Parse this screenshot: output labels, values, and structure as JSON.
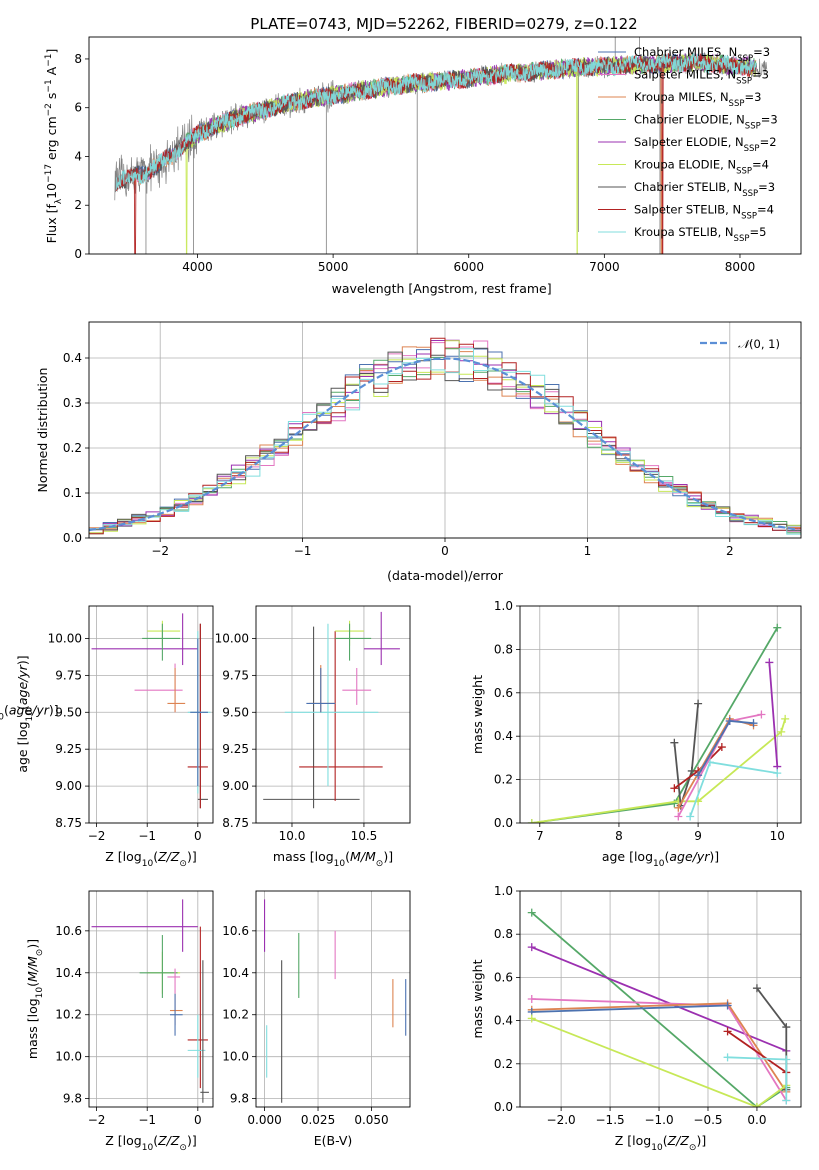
{
  "figure": {
    "title": "PLATE=0743, MJD=52262, FIBERID=0279, z=0.122"
  },
  "colors": {
    "Chabrier MILES": "#4c72b0",
    "Salpeter MILES": "#e377c2",
    "Kroupa MILES": "#dd8452",
    "Chabrier ELODIE": "#55a868",
    "Salpeter ELODIE": "#9b30b0",
    "Kroupa ELODIE": "#c7e857",
    "Chabrier STELIB": "#555555",
    "Salpeter STELIB": "#b22222",
    "Kroupa STELIB": "#80dede",
    "data": "#808080",
    "normal": "#5b8fd6"
  },
  "chart_data": [
    {
      "id": "spectrum",
      "type": "line",
      "title": "PLATE=0743, MJD=52262, FIBERID=0279, z=0.122",
      "xlabel": "wavelength [Angstrom, rest frame]",
      "ylabel": "Flux [f_λ 10^-17 erg cm^-2 s^-1 A^-1]",
      "xlim": [
        3200,
        8450
      ],
      "ylim": [
        0,
        8.9
      ],
      "xticks": [
        4000,
        5000,
        6000,
        7000,
        8000
      ],
      "yticks": [
        0,
        2,
        4,
        6,
        8
      ],
      "grid": false,
      "legend_position": "top-right",
      "legend": [
        {
          "name": "Chabrier MILES, N",
          "sub": "SSP",
          "tail": "=3"
        },
        {
          "name": "Salpeter MILES, N",
          "sub": "SSP",
          "tail": "=3"
        },
        {
          "name": "Kroupa MILES, N",
          "sub": "SSP",
          "tail": "=3"
        },
        {
          "name": "Chabrier ELODIE, N",
          "sub": "SSP",
          "tail": "=3"
        },
        {
          "name": "Salpeter ELODIE, N",
          "sub": "SSP",
          "tail": "=2"
        },
        {
          "name": "Kroupa ELODIE, N",
          "sub": "SSP",
          "tail": "=4"
        },
        {
          "name": "Chabrier STELIB, N",
          "sub": "SSP",
          "tail": "=3"
        },
        {
          "name": "Salpeter STELIB, N",
          "sub": "SSP",
          "tail": "=4"
        },
        {
          "name": "Kroupa STELIB, N",
          "sub": "SSP",
          "tail": "=5"
        }
      ],
      "continuum": {
        "x": [
          3400,
          3500,
          3600,
          3700,
          3800,
          3900,
          4000,
          4100,
          4200,
          4300,
          4400,
          4500,
          4600,
          4700,
          4800,
          4900,
          5000,
          5200,
          5400,
          5600,
          5800,
          6000,
          6200,
          6400,
          6600,
          6800,
          7000,
          7200,
          7400,
          7600,
          7800,
          8000,
          8200
        ],
        "y": [
          3.0,
          3.1,
          3.3,
          3.6,
          4.0,
          4.5,
          4.9,
          5.2,
          5.4,
          5.6,
          5.8,
          5.9,
          6.1,
          6.2,
          6.35,
          6.4,
          6.5,
          6.7,
          6.85,
          7.0,
          7.1,
          7.2,
          7.35,
          7.45,
          7.55,
          7.65,
          7.7,
          7.75,
          7.8,
          7.85,
          7.8,
          7.7,
          7.6
        ]
      },
      "drops": [
        {
          "model": "Kroupa MILES",
          "x": 3510
        },
        {
          "model": "Salpeter STELIB",
          "x": 3540
        },
        {
          "model": "Kroupa ELODIE",
          "x": 3920
        },
        {
          "model": "Kroupa ELODIE",
          "x": 6800
        },
        {
          "model": "Kroupa MILES",
          "x": 7420
        },
        {
          "model": "Salpeter STELIB",
          "x": 7430
        }
      ]
    },
    {
      "id": "residuals",
      "type": "line",
      "xlabel": "(data-model)/error",
      "ylabel": "Normed distribution",
      "xlim": [
        -2.5,
        2.5
      ],
      "ylim": [
        0,
        0.48
      ],
      "xticks": [
        -2,
        -1,
        0,
        1,
        2
      ],
      "yticks": [
        0.0,
        0.1,
        0.2,
        0.3,
        0.4
      ],
      "grid": true,
      "legend_position": "top-right",
      "legend": [
        {
          "name": "N(0,1)"
        }
      ],
      "bin_width": 0.1
    },
    {
      "id": "age-vs-Z",
      "type": "scatter",
      "xlabel": "Z [log10(Z/Z☉)]",
      "ylabel": "age [log10(age/yr)]",
      "xlim": [
        -2.15,
        0.3
      ],
      "ylim": [
        8.75,
        10.22
      ],
      "xticks": [
        -2,
        -1,
        0
      ],
      "yticks": [
        8.75,
        9.0,
        9.25,
        9.5,
        9.75,
        10.0
      ],
      "grid": true,
      "points": [
        {
          "model": "Salpeter ELODIE",
          "x": -0.3,
          "y": 9.93,
          "xlo": -2.1,
          "xhi": 0.0,
          "ylo": 9.82,
          "yhi": 10.17
        },
        {
          "model": "Kroupa ELODIE",
          "x": -0.7,
          "y": 10.05,
          "xlo": -1.0,
          "xhi": -0.35,
          "ylo": 9.95,
          "yhi": 10.12
        },
        {
          "model": "Chabrier ELODIE",
          "x": -0.7,
          "y": 10.0,
          "xlo": -1.1,
          "xhi": -0.35,
          "ylo": 9.85,
          "yhi": 10.1
        },
        {
          "model": "Salpeter MILES",
          "x": -0.45,
          "y": 9.65,
          "xlo": -1.25,
          "xhi": -0.3,
          "ylo": 9.5,
          "yhi": 9.83
        },
        {
          "model": "Kroupa MILES",
          "x": -0.45,
          "y": 9.56,
          "xlo": -0.6,
          "xhi": -0.25,
          "ylo": 9.5,
          "yhi": 9.8
        },
        {
          "model": "Chabrier STELIB",
          "x": 0.05,
          "y": 8.91,
          "xlo": 0.0,
          "xhi": 0.2,
          "ylo": 8.85,
          "yhi": 10.1
        },
        {
          "model": "Salpeter STELIB",
          "x": 0.05,
          "y": 9.13,
          "xlo": -0.2,
          "xhi": 0.2,
          "ylo": 8.85,
          "yhi": 10.1
        },
        {
          "model": "Kroupa STELIB",
          "x": 0.0,
          "y": 9.5,
          "xlo": -0.2,
          "xhi": 0.25,
          "ylo": 8.95,
          "yhi": 10.05
        },
        {
          "model": "Chabrier MILES",
          "x": 0.0,
          "y": 9.5,
          "xlo": -0.15,
          "xhi": 0.2,
          "ylo": 9.0,
          "yhi": 10.0
        }
      ]
    },
    {
      "id": "age-vs-mass",
      "type": "scatter",
      "xlabel": "mass [log10(M/M☉)]",
      "ylabel": "",
      "xlim": [
        9.75,
        10.82
      ],
      "ylim": [
        8.75,
        10.22
      ],
      "xticks": [
        10.0,
        10.5
      ],
      "yticks": [
        8.75,
        9.0,
        9.25,
        9.5,
        9.75,
        10.0
      ],
      "grid": true,
      "points": [
        {
          "model": "Chabrier STELIB",
          "x": 10.15,
          "y": 8.91,
          "xlo": 9.8,
          "xhi": 10.47,
          "ylo": 8.85,
          "yhi": 10.08
        },
        {
          "model": "Salpeter STELIB",
          "x": 10.3,
          "y": 9.13,
          "xlo": 10.05,
          "xhi": 10.63,
          "ylo": 8.9,
          "yhi": 10.05
        },
        {
          "model": "Kroupa STELIB",
          "x": 10.25,
          "y": 9.5,
          "xlo": 9.95,
          "xhi": 10.6,
          "ylo": 9.0,
          "yhi": 10.1
        },
        {
          "model": "Kroupa MILES",
          "x": 10.2,
          "y": 9.56,
          "xlo": 10.12,
          "xhi": 10.3,
          "ylo": 9.5,
          "yhi": 9.82
        },
        {
          "model": "Chabrier MILES",
          "x": 10.2,
          "y": 9.56,
          "xlo": 10.1,
          "xhi": 10.3,
          "ylo": 9.5,
          "yhi": 9.8
        },
        {
          "model": "Salpeter MILES",
          "x": 10.45,
          "y": 9.65,
          "xlo": 10.35,
          "xhi": 10.55,
          "ylo": 9.55,
          "yhi": 9.8
        },
        {
          "model": "Kroupa ELODIE",
          "x": 10.4,
          "y": 10.05,
          "xlo": 10.3,
          "xhi": 10.5,
          "ylo": 9.95,
          "yhi": 10.12
        },
        {
          "model": "Chabrier ELODIE",
          "x": 10.4,
          "y": 10.0,
          "xlo": 10.3,
          "xhi": 10.55,
          "ylo": 9.85,
          "yhi": 10.1
        },
        {
          "model": "Salpeter ELODIE",
          "x": 10.62,
          "y": 9.93,
          "xlo": 10.5,
          "xhi": 10.75,
          "ylo": 9.82,
          "yhi": 10.18
        }
      ]
    },
    {
      "id": "massweight-vs-age",
      "type": "line",
      "xlabel": "age [log10(age/yr)]",
      "ylabel": "mass weight",
      "xlim": [
        6.75,
        10.3
      ],
      "ylim": [
        0,
        1.0
      ],
      "xticks": [
        7,
        8,
        9,
        10
      ],
      "yticks": [
        0.0,
        0.2,
        0.4,
        0.6,
        0.8,
        1.0
      ],
      "grid": true,
      "series": [
        {
          "model": "Chabrier ELODIE",
          "x": [
            6.9,
            8.7,
            10.0
          ],
          "y": [
            0.0,
            0.09,
            0.9
          ]
        },
        {
          "model": "Kroupa ELODIE",
          "x": [
            6.9,
            8.75,
            9.0,
            10.05,
            10.1
          ],
          "y": [
            0.0,
            0.1,
            0.1,
            0.42,
            0.48
          ]
        },
        {
          "model": "Salpeter ELODIE",
          "x": [
            9.9,
            10.0
          ],
          "y": [
            0.74,
            0.26
          ]
        },
        {
          "model": "Chabrier STELIB",
          "x": [
            8.7,
            8.78,
            8.92,
            9.0
          ],
          "y": [
            0.37,
            0.08,
            0.24,
            0.55
          ]
        },
        {
          "model": "Salpeter STELIB",
          "x": [
            8.7,
            9.0,
            9.3
          ],
          "y": [
            0.16,
            0.24,
            0.35
          ]
        },
        {
          "model": "Kroupa STELIB",
          "x": [
            8.9,
            9.15,
            10.0
          ],
          "y": [
            0.03,
            0.28,
            0.23
          ]
        },
        {
          "model": "Kroupa MILES",
          "x": [
            8.75,
            9.4,
            9.7
          ],
          "y": [
            0.07,
            0.48,
            0.45
          ]
        },
        {
          "model": "Salpeter MILES",
          "x": [
            8.75,
            9.4,
            9.8
          ],
          "y": [
            0.03,
            0.47,
            0.5
          ]
        },
        {
          "model": "Chabrier MILES",
          "x": [
            9.0,
            9.4,
            9.7
          ],
          "y": [
            0.22,
            0.47,
            0.46
          ]
        }
      ]
    },
    {
      "id": "mass-vs-Z",
      "type": "scatter",
      "xlabel": "Z [log10(Z/Z☉)]",
      "ylabel": "mass [log10(M/M☉)]",
      "xlim": [
        -2.15,
        0.3
      ],
      "ylim": [
        9.76,
        10.79
      ],
      "xticks": [
        -2,
        -1,
        0
      ],
      "yticks": [
        9.8,
        10.0,
        10.2,
        10.4,
        10.6
      ],
      "grid": true,
      "points": [
        {
          "model": "Salpeter ELODIE",
          "x": -0.3,
          "y": 10.62,
          "xlo": -2.1,
          "xhi": 0.0,
          "ylo": 10.5,
          "yhi": 10.75
        },
        {
          "model": "Kroupa ELODIE",
          "x": -0.7,
          "y": 10.4,
          "xlo": -1.0,
          "xhi": -0.35,
          "ylo": 10.3,
          "yhi": 10.5
        },
        {
          "model": "Chabrier ELODIE",
          "x": -0.7,
          "y": 10.4,
          "xlo": -1.15,
          "xhi": -0.4,
          "ylo": 10.28,
          "yhi": 10.58
        },
        {
          "model": "Salpeter MILES",
          "x": -0.45,
          "y": 10.38,
          "xlo": -0.6,
          "xhi": -0.35,
          "ylo": 10.3,
          "yhi": 10.42
        },
        {
          "model": "Kroupa MILES",
          "x": -0.45,
          "y": 10.22,
          "xlo": -0.55,
          "xhi": -0.3,
          "ylo": 10.15,
          "yhi": 10.3
        },
        {
          "model": "Chabrier MILES",
          "x": -0.45,
          "y": 10.2,
          "xlo": -0.55,
          "xhi": -0.3,
          "ylo": 10.1,
          "yhi": 10.3
        },
        {
          "model": "Salpeter STELIB",
          "x": 0.05,
          "y": 10.08,
          "xlo": -0.2,
          "xhi": 0.2,
          "ylo": 9.85,
          "yhi": 10.62
        },
        {
          "model": "Kroupa STELIB",
          "x": 0.0,
          "y": 10.03,
          "xlo": -0.2,
          "xhi": 0.15,
          "ylo": 9.9,
          "yhi": 10.2
        },
        {
          "model": "Chabrier STELIB",
          "x": 0.1,
          "y": 9.83,
          "xlo": 0.05,
          "xhi": 0.22,
          "ylo": 9.78,
          "yhi": 10.46
        }
      ]
    },
    {
      "id": "mass-vs-ebv",
      "type": "scatter",
      "xlabel": "E(B-V)",
      "ylabel": "",
      "xlim": [
        -0.004,
        0.068
      ],
      "ylim": [
        9.76,
        10.79
      ],
      "xticks": [
        0.0,
        0.025,
        0.05
      ],
      "yticks": [
        9.8,
        10.0,
        10.2,
        10.4,
        10.6
      ],
      "grid": true,
      "points": [
        {
          "model": "Salpeter ELODIE",
          "x": 0.0,
          "ylo": 10.5,
          "yhi": 10.75
        },
        {
          "model": "Kroupa STELIB",
          "x": 0.001,
          "ylo": 9.9,
          "yhi": 10.15
        },
        {
          "model": "Chabrier STELIB",
          "x": 0.008,
          "ylo": 9.78,
          "yhi": 10.46
        },
        {
          "model": "Chabrier ELODIE",
          "x": 0.016,
          "ylo": 10.28,
          "yhi": 10.59
        },
        {
          "model": "Salpeter MILES",
          "x": 0.033,
          "ylo": 10.37,
          "yhi": 10.6
        },
        {
          "model": "Kroupa MILES",
          "x": 0.06,
          "ylo": 10.14,
          "yhi": 10.37
        },
        {
          "model": "Chabrier MILES",
          "x": 0.066,
          "ylo": 10.1,
          "yhi": 10.37
        }
      ]
    },
    {
      "id": "massweight-vs-Z",
      "type": "line",
      "xlabel": "Z [log10(Z/Z☉)]",
      "ylabel": "mass weight",
      "xlim": [
        -2.42,
        0.45
      ],
      "ylim": [
        0,
        1.0
      ],
      "xticks": [
        -2.0,
        -1.5,
        -1.0,
        -0.5,
        0.0
      ],
      "yticks": [
        0.0,
        0.2,
        0.4,
        0.6,
        0.8,
        1.0
      ],
      "grid": true,
      "series": [
        {
          "model": "Chabrier ELODIE",
          "x": [
            -2.3,
            0.0,
            0.3
          ],
          "y": [
            0.9,
            0.0,
            0.09
          ]
        },
        {
          "model": "Salpeter ELODIE",
          "x": [
            -2.3,
            0.3
          ],
          "y": [
            0.74,
            0.26
          ]
        },
        {
          "model": "Salpeter MILES",
          "x": [
            -2.3,
            -0.3,
            0.3
          ],
          "y": [
            0.5,
            0.47,
            0.03
          ]
        },
        {
          "model": "Kroupa MILES",
          "x": [
            -2.3,
            -0.3,
            0.3
          ],
          "y": [
            0.45,
            0.48,
            0.07
          ]
        },
        {
          "model": "Chabrier MILES",
          "x": [
            -2.3,
            -0.3
          ],
          "y": [
            0.44,
            0.47
          ]
        },
        {
          "model": "Kroupa ELODIE",
          "x": [
            -2.3,
            0.0,
            0.3
          ],
          "y": [
            0.41,
            0.0,
            0.1
          ]
        },
        {
          "model": "Chabrier STELIB",
          "x": [
            0.0,
            0.3,
            0.3
          ],
          "y": [
            0.55,
            0.37,
            0.08
          ]
        },
        {
          "model": "Salpeter STELIB",
          "x": [
            -0.3,
            0.3
          ],
          "y": [
            0.35,
            0.16
          ]
        },
        {
          "model": "Kroupa STELIB",
          "x": [
            -0.3,
            0.3,
            0.3
          ],
          "y": [
            0.23,
            0.22,
            0.03
          ]
        }
      ]
    }
  ]
}
